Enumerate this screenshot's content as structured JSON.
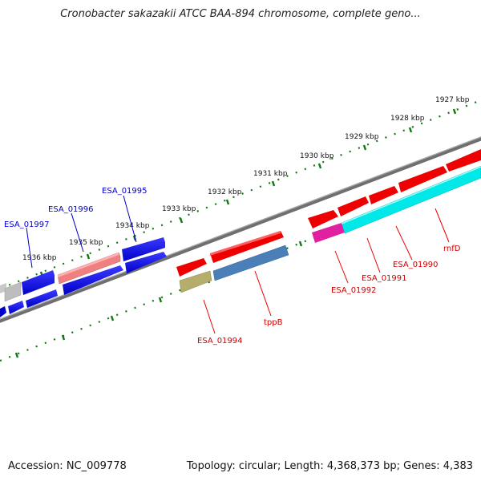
{
  "title": "Cronobacter sakazakii ATCC BAA-894 chromosome, complete geno...",
  "footer": {
    "accession": "Accession: NC_009778",
    "summary": "Topology: circular; Length: 4,368,373 bp; Genes: 4,383"
  },
  "ticks": [
    "1927 kbp",
    "1928 kbp",
    "1929 kbp",
    "1930 kbp",
    "1931 kbp",
    "1932 kbp",
    "1933 kbp",
    "1934 kbp",
    "1935 kbp",
    "1936 kbp"
  ],
  "genes": {
    "top": [
      "ESA_01997",
      "ESA_01996",
      "ESA_01995"
    ],
    "bottom": [
      "ESA_01994",
      "tppB",
      "ESA_01992",
      "ESA_01991",
      "ESA_01990",
      "rnfD"
    ]
  },
  "colors": {
    "forward": "#0000ee",
    "reverse": "#ee0000",
    "cyan": "#00e8e8",
    "magenta": "#e020a0",
    "steel": "#4a7fb8",
    "olive": "#b4ae6a",
    "salmon": "#f08080",
    "gray": "#bbbbbb",
    "tick": "#117711",
    "backbone": "#777777"
  }
}
